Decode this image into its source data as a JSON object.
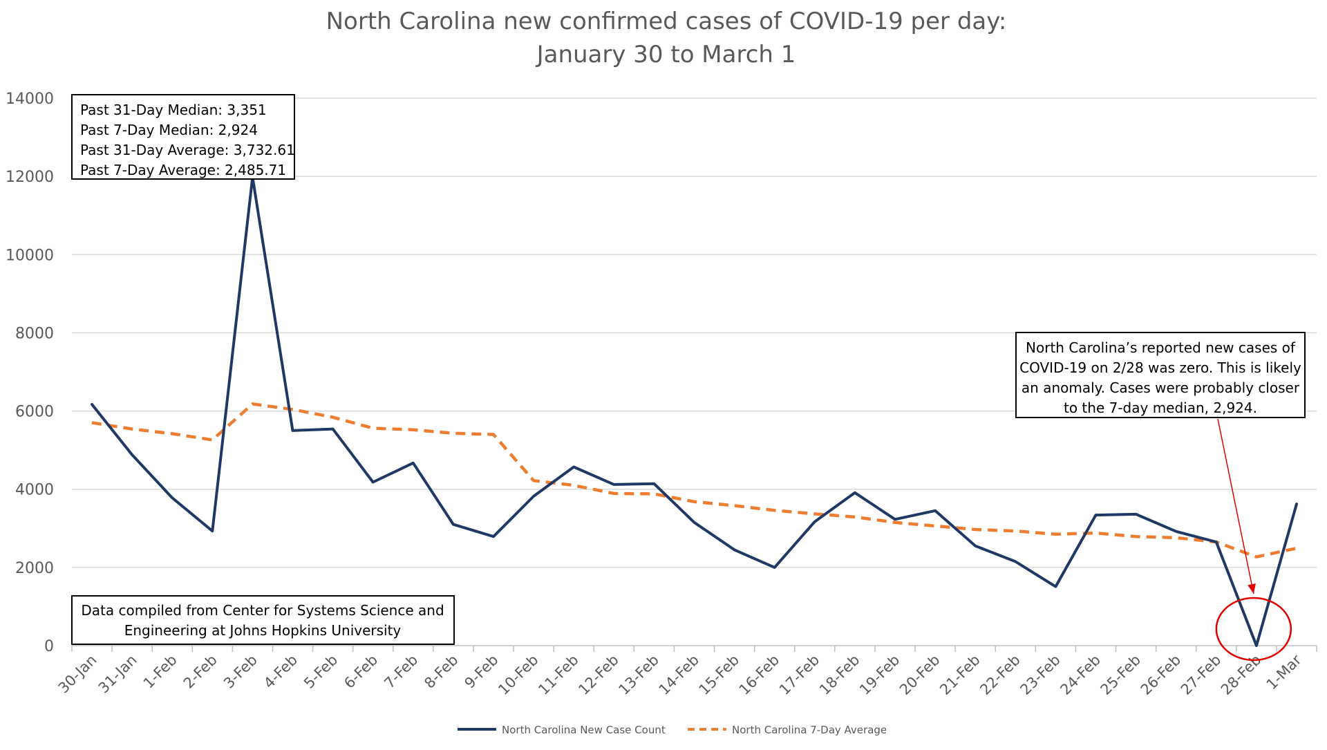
{
  "chart_data": {
    "type": "line",
    "title": "North Carolina new confirmed cases of COVID-19 per day:",
    "subtitle": "January 30 to March 1",
    "xlabel": "",
    "ylabel": "",
    "ylim": [
      0,
      14000
    ],
    "yticks": [
      0,
      2000,
      4000,
      6000,
      8000,
      10000,
      12000,
      14000
    ],
    "grid": true,
    "legend_position": "bottom",
    "categories": [
      "30-Jan",
      "31-Jan",
      "1-Feb",
      "2-Feb",
      "3-Feb",
      "4-Feb",
      "5-Feb",
      "6-Feb",
      "7-Feb",
      "8-Feb",
      "9-Feb",
      "10-Feb",
      "11-Feb",
      "12-Feb",
      "13-Feb",
      "14-Feb",
      "15-Feb",
      "16-Feb",
      "17-Feb",
      "18-Feb",
      "19-Feb",
      "20-Feb",
      "21-Feb",
      "22-Feb",
      "23-Feb",
      "24-Feb",
      "25-Feb",
      "26-Feb",
      "27-Feb",
      "28-Feb",
      "1-Mar"
    ],
    "series": [
      {
        "name": "North Carolina New Case Count",
        "color": "#1f3864",
        "style": "solid",
        "values": [
          6170,
          4880,
          3780,
          2930,
          11980,
          5500,
          5540,
          4180,
          4670,
          3100,
          2790,
          3820,
          4570,
          4120,
          4140,
          3150,
          2450,
          2000,
          3170,
          3910,
          3230,
          3450,
          2550,
          2150,
          1510,
          3340,
          3360,
          2920,
          2650,
          0,
          3620
        ]
      },
      {
        "name": "North Carolina 7-Day Average",
        "color": "#ed7d31",
        "style": "dashed",
        "values": [
          5700,
          5540,
          5420,
          5260,
          6180,
          6040,
          5840,
          5560,
          5520,
          5430,
          5400,
          4220,
          4100,
          3890,
          3880,
          3680,
          3580,
          3460,
          3370,
          3290,
          3150,
          3060,
          2970,
          2930,
          2850,
          2880,
          2790,
          2760,
          2650,
          2270,
          2490
        ]
      }
    ],
    "annotations": {
      "stats_box": [
        "Past 31-Day Median: 3,351",
        "Past 7-Day Median: 2,924",
        "Past 31-Day Average: 3,732.61",
        "Past 7-Day Average: 2,485.71"
      ],
      "source_box": [
        "Data compiled from Center for Systems Science and",
        "Engineering at Johns Hopkins University"
      ],
      "anomaly_box": [
        "North Carolina’s reported new cases of",
        "COVID-19 on 2/28 was zero. This is likely",
        "an anomaly. Cases were probably closer",
        "to the 7-day median, 2,924."
      ],
      "highlight_category": "28-Feb",
      "highlight_color": "#e00000"
    }
  }
}
